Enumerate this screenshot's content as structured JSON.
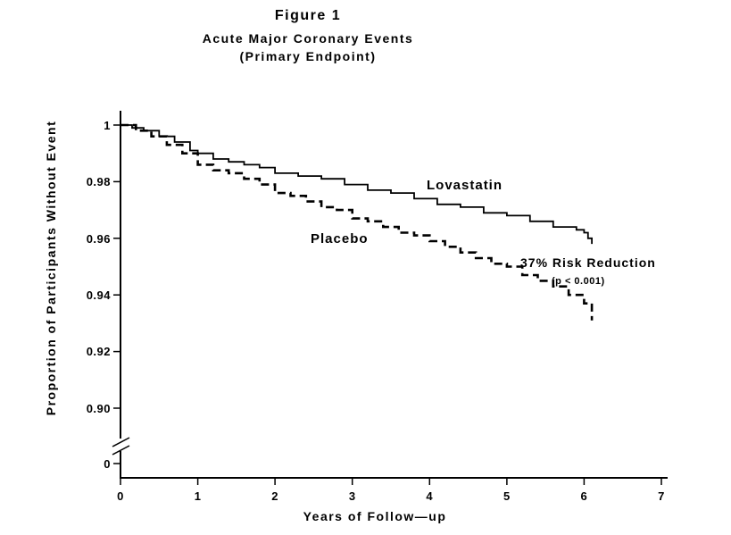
{
  "figure": {
    "title": "Figure 1",
    "subtitle": "Acute Major Coronary Events",
    "subtitle2": "(Primary Endpoint)"
  },
  "chart_data": {
    "type": "line",
    "title": "Figure 1",
    "subtitle": "Acute Major Coronary Events (Primary Endpoint)",
    "xlabel": "Years of Follow—up",
    "ylabel": "Proportion of Participants Without Event",
    "xlim": [
      0,
      7
    ],
    "ylim_main": [
      0.9,
      1.0
    ],
    "y_axis_break": true,
    "grid": false,
    "legend_position": "inline-annotations",
    "x_ticks": [
      "0",
      "1",
      "2",
      "3",
      "4",
      "5",
      "6",
      "7"
    ],
    "y_ticks": [
      "1",
      "0.98",
      "0.96",
      "0.94",
      "0.92",
      "0.90"
    ],
    "y_zero_tick": "0",
    "annotations": [
      {
        "text": "Lovastatin",
        "x": 4.0,
        "y": 0.979
      },
      {
        "text": "Placebo",
        "x": 2.5,
        "y": 0.962
      },
      {
        "text": "37% Risk Reduction",
        "x": 5.2,
        "y": 0.95
      },
      {
        "text": "(p < 0.001)",
        "x": 5.6,
        "y": 0.944
      }
    ],
    "series": [
      {
        "name": "Lovastatin",
        "style": "solid",
        "x": [
          0,
          0.15,
          0.3,
          0.5,
          0.7,
          0.9,
          1.0,
          1.2,
          1.4,
          1.6,
          1.8,
          2.0,
          2.3,
          2.6,
          2.9,
          3.2,
          3.5,
          3.8,
          4.1,
          4.4,
          4.7,
          5.0,
          5.3,
          5.6,
          5.9,
          6.0,
          6.05,
          6.1
        ],
        "y": [
          1.0,
          0.999,
          0.998,
          0.996,
          0.994,
          0.991,
          0.99,
          0.988,
          0.987,
          0.986,
          0.985,
          0.983,
          0.982,
          0.981,
          0.979,
          0.977,
          0.976,
          0.974,
          0.972,
          0.971,
          0.969,
          0.968,
          0.966,
          0.964,
          0.963,
          0.962,
          0.96,
          0.958
        ]
      },
      {
        "name": "Placebo",
        "style": "dashed",
        "x": [
          0,
          0.2,
          0.4,
          0.6,
          0.8,
          1.0,
          1.2,
          1.4,
          1.6,
          1.8,
          2.0,
          2.2,
          2.4,
          2.6,
          2.8,
          3.0,
          3.2,
          3.4,
          3.6,
          3.8,
          4.0,
          4.2,
          4.4,
          4.6,
          4.8,
          5.0,
          5.2,
          5.4,
          5.6,
          5.8,
          6.0,
          6.1
        ],
        "y": [
          1.0,
          0.998,
          0.996,
          0.993,
          0.99,
          0.986,
          0.984,
          0.983,
          0.981,
          0.979,
          0.976,
          0.975,
          0.973,
          0.971,
          0.97,
          0.967,
          0.966,
          0.964,
          0.962,
          0.961,
          0.959,
          0.957,
          0.955,
          0.953,
          0.951,
          0.95,
          0.947,
          0.945,
          0.943,
          0.94,
          0.937,
          0.931
        ]
      }
    ]
  }
}
